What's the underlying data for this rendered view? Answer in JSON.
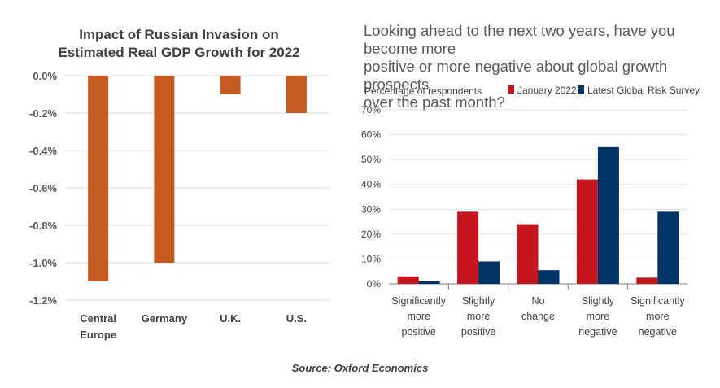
{
  "source": "Source: Oxford Economics",
  "chart_data": [
    {
      "type": "bar",
      "title_lines": [
        "Impact of Russian Invasion on",
        "Estimated Real GDP Growth for 2022"
      ],
      "categories": [
        [
          "Central",
          "Europe"
        ],
        [
          "Germany"
        ],
        [
          "U.K."
        ],
        [
          "U.S."
        ]
      ],
      "values": [
        -1.1,
        -1.0,
        -0.1,
        -0.2
      ],
      "ylim": [
        -1.2,
        0.0
      ],
      "yticks": [
        "0.0%",
        "-0.2%",
        "-0.4%",
        "-0.6%",
        "-0.8%",
        "-1.0%",
        "-1.2%"
      ],
      "grid": true,
      "bar_color": "#C55A22"
    },
    {
      "type": "bar",
      "title_lines": [
        "Looking ahead to the next two years, have you become more",
        "positive or more negative about global growth prospects",
        "over the past month?"
      ],
      "ylabel": "Percentage of respondents",
      "categories": [
        [
          "Significantly",
          "more",
          "positive"
        ],
        [
          "Slightly",
          "more",
          "positive"
        ],
        [
          "No",
          "change"
        ],
        [
          "Slightly",
          "more",
          "negative"
        ],
        [
          "Significantly",
          "more",
          "negative"
        ]
      ],
      "series": [
        {
          "name": "January 2022",
          "color": "#C4161C",
          "values": [
            3,
            29,
            24,
            42,
            2.5
          ]
        },
        {
          "name": "Latest Global Risk Survey",
          "color": "#003366",
          "values": [
            1,
            9,
            5.5,
            55,
            29
          ]
        }
      ],
      "ylim": [
        0,
        70
      ],
      "yticks": [
        "0%",
        "10%",
        "20%",
        "30%",
        "40%",
        "50%",
        "60%",
        "70%"
      ],
      "legend_position": "top",
      "grid": true
    }
  ]
}
